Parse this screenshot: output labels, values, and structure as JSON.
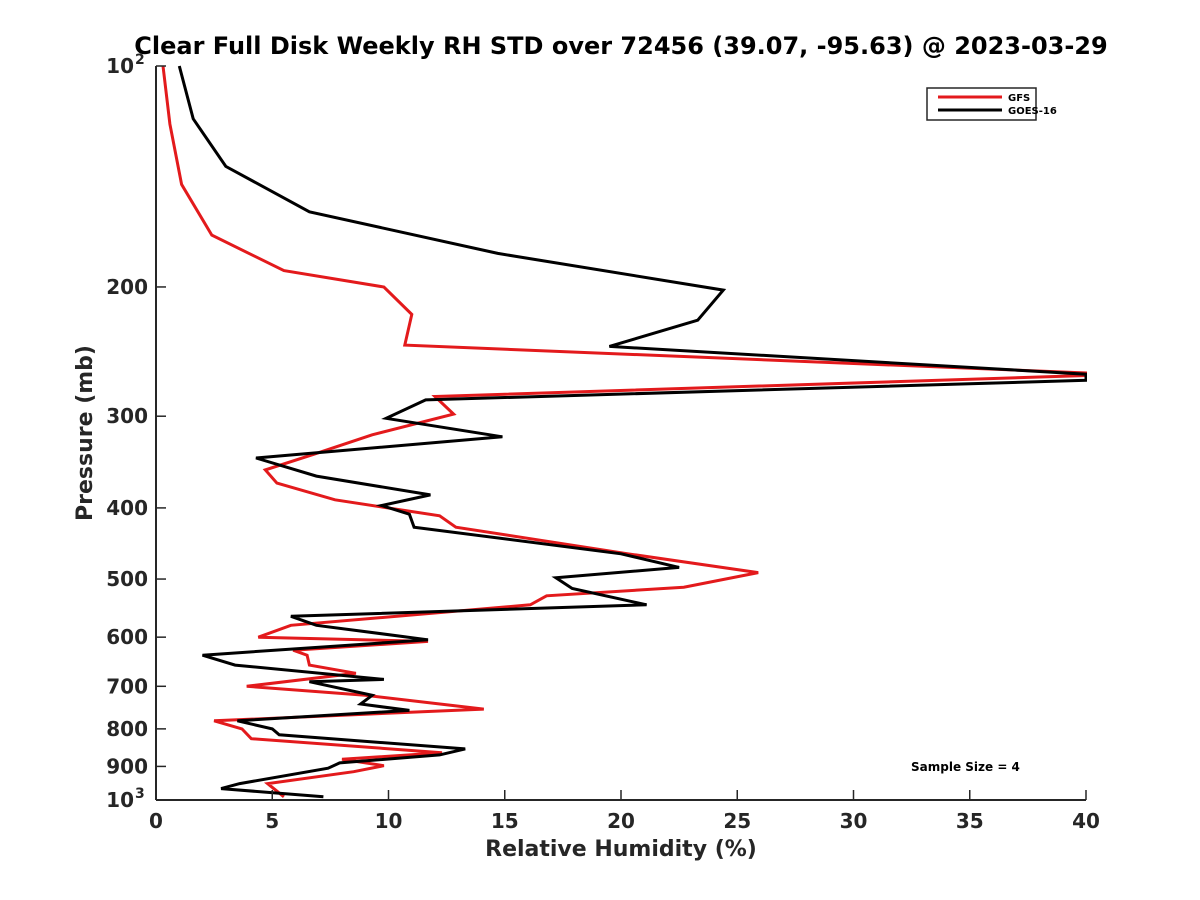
{
  "chart_data": {
    "type": "line",
    "title": "Clear Full Disk Weekly RH STD over 72456 (39.07, -95.63) @ 2023-03-29",
    "xlabel": "Relative Humidity (%)",
    "ylabel": "Pressure (mb)",
    "xlim": [
      0,
      40
    ],
    "ylim": [
      100,
      1000
    ],
    "yscale": "log",
    "y_reversed": true,
    "grid": false,
    "xticks": [
      0,
      5,
      10,
      15,
      20,
      25,
      30,
      35,
      40
    ],
    "xtick_labels": [
      "0",
      "5",
      "10",
      "15",
      "20",
      "25",
      "30",
      "35",
      "40"
    ],
    "yticks": [
      100,
      200,
      300,
      400,
      500,
      600,
      700,
      800,
      900,
      1000
    ],
    "ytick_labels": [
      {
        "base": "10",
        "exp": "2"
      },
      {
        "base": "200",
        "exp": ""
      },
      {
        "base": "300",
        "exp": ""
      },
      {
        "base": "400",
        "exp": ""
      },
      {
        "base": "500",
        "exp": ""
      },
      {
        "base": "600",
        "exp": ""
      },
      {
        "base": "700",
        "exp": ""
      },
      {
        "base": "800",
        "exp": ""
      },
      {
        "base": "900",
        "exp": ""
      },
      {
        "base": "10",
        "exp": "3"
      }
    ],
    "legend": {
      "position": "top-right",
      "entries": [
        "GFS",
        "GOES-16"
      ]
    },
    "annotation": "Sample Size = 4",
    "series": [
      {
        "name": "GFS",
        "color": "#e31a1c",
        "points": [
          [
            0.3,
            100
          ],
          [
            0.6,
            120
          ],
          [
            1.1,
            145
          ],
          [
            2.4,
            170
          ],
          [
            5.5,
            190
          ],
          [
            9.8,
            200
          ],
          [
            11.0,
            218
          ],
          [
            10.7,
            240
          ],
          [
            40,
            262
          ],
          [
            40,
            264
          ],
          [
            12.0,
            282
          ],
          [
            12.8,
            298
          ],
          [
            9.3,
            318
          ],
          [
            6.8,
            338
          ],
          [
            4.7,
            355
          ],
          [
            5.2,
            370
          ],
          [
            7.7,
            390
          ],
          [
            12.2,
            410
          ],
          [
            12.9,
            425
          ],
          [
            20.3,
            462
          ],
          [
            25.9,
            490
          ],
          [
            22.7,
            513
          ],
          [
            16.8,
            527
          ],
          [
            16.1,
            542
          ],
          [
            5.8,
            578
          ],
          [
            4.4,
            600
          ],
          [
            11.7,
            608
          ],
          [
            5.9,
            625
          ],
          [
            6.5,
            635
          ],
          [
            6.6,
            655
          ],
          [
            8.6,
            672
          ],
          [
            3.9,
            700
          ],
          [
            9.0,
            720
          ],
          [
            14.1,
            752
          ],
          [
            2.5,
            780
          ],
          [
            3.7,
            800
          ],
          [
            4.1,
            825
          ],
          [
            12.3,
            862
          ],
          [
            8.0,
            880
          ],
          [
            9.8,
            898
          ],
          [
            8.5,
            915
          ],
          [
            4.8,
            950
          ],
          [
            5.5,
            990
          ]
        ]
      },
      {
        "name": "GOES-16",
        "color": "#000000",
        "points": [
          [
            1.0,
            100
          ],
          [
            1.6,
            118
          ],
          [
            3.0,
            137
          ],
          [
            6.6,
            158
          ],
          [
            14.7,
            180
          ],
          [
            24.4,
            202
          ],
          [
            23.3,
            222
          ],
          [
            19.5,
            241
          ],
          [
            40,
            263
          ],
          [
            40,
            268
          ],
          [
            11.6,
            285
          ],
          [
            9.9,
            302
          ],
          [
            14.9,
            320
          ],
          [
            4.3,
            342
          ],
          [
            6.9,
            362
          ],
          [
            11.8,
            384
          ],
          [
            9.7,
            397
          ],
          [
            10.9,
            408
          ],
          [
            11.1,
            425
          ],
          [
            20.0,
            462
          ],
          [
            22.5,
            482
          ],
          [
            17.2,
            498
          ],
          [
            17.9,
            515
          ],
          [
            21.1,
            542
          ],
          [
            5.8,
            562
          ],
          [
            6.9,
            578
          ],
          [
            11.7,
            605
          ],
          [
            2.0,
            635
          ],
          [
            3.4,
            655
          ],
          [
            9.8,
            685
          ],
          [
            6.6,
            690
          ],
          [
            9.3,
            720
          ],
          [
            8.8,
            740
          ],
          [
            10.9,
            755
          ],
          [
            3.5,
            780
          ],
          [
            5.0,
            800
          ],
          [
            5.3,
            815
          ],
          [
            13.3,
            852
          ],
          [
            12.2,
            868
          ],
          [
            7.9,
            890
          ],
          [
            7.4,
            905
          ],
          [
            3.6,
            950
          ],
          [
            2.8,
            965
          ],
          [
            7.2,
            990
          ]
        ]
      }
    ]
  }
}
